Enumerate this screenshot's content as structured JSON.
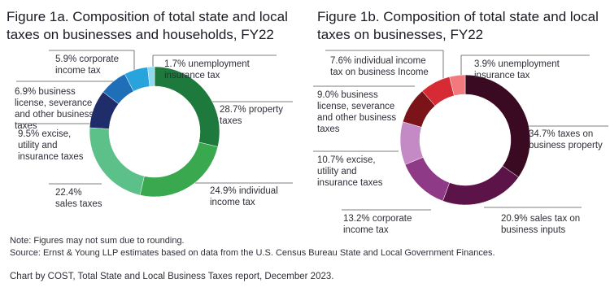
{
  "chart_data": [
    {
      "type": "donut",
      "title": "Figure 1a. Composition of total state and local taxes on businesses and households, FY22",
      "categories": [
        "property taxes",
        "individual income tax",
        "sales taxes",
        "excise, utility and insurance taxes",
        "business license, severance and other business taxes",
        "corporate income tax",
        "unemployment insurance tax"
      ],
      "values": [
        28.7,
        24.9,
        22.4,
        9.5,
        6.9,
        5.9,
        1.7
      ],
      "value_labels": [
        "28.7%",
        "24.9%",
        "22.4%",
        "9.5%",
        "6.9%",
        "5.9%",
        "1.7%"
      ],
      "colors": [
        "#1e7a3c",
        "#3aa84e",
        "#5cc089",
        "#1f2e6b",
        "#1e6fb8",
        "#29a3dc",
        "#8dd8f0"
      ]
    },
    {
      "type": "donut",
      "title": "Figure 1b. Composition of total state and local taxes on businesses, FY22",
      "categories": [
        "taxes on business property",
        "sales tax on business inputs",
        "corporate income tax",
        "excise, utility and insurance taxes",
        "business license, severance and other business taxes",
        "individual income tax on business Income",
        "unemployment insurance tax"
      ],
      "values": [
        34.7,
        20.9,
        13.2,
        10.7,
        9.0,
        7.6,
        3.9
      ],
      "value_labels": [
        "34.7%",
        "20.9%",
        "13.2%",
        "10.7%",
        "9.0%",
        "7.6%",
        "3.9%"
      ],
      "colors": [
        "#3a0a22",
        "#5c1448",
        "#8e3a86",
        "#c48ac6",
        "#7a1418",
        "#d62a34",
        "#f27a7e"
      ]
    }
  ],
  "notes": {
    "note": "Note: Figures may not sum due to rounding.",
    "source": "Source: Ernst & Young LLP estimates based on data from the U.S. Census Bureau State and Local Government Finances.",
    "credit": "Chart by COST, Total State and Local Business Taxes report, December 2023."
  }
}
